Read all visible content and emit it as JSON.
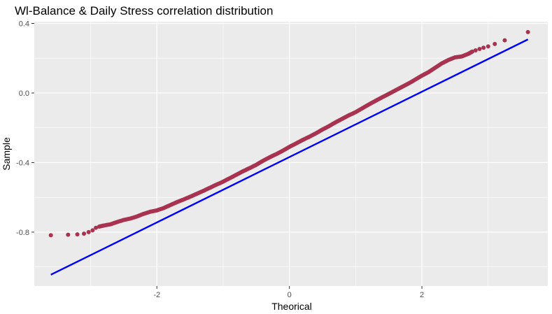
{
  "chart_data": {
    "type": "scatter",
    "title": "Wl-Balance & Daily Stress correlation distribution",
    "xlabel": "Theorical",
    "ylabel": "Sample",
    "xlim": [
      -3.85,
      3.9
    ],
    "ylim": [
      -1.11,
      0.41
    ],
    "x_ticks": [
      -2,
      0,
      2
    ],
    "x_tick_labels": [
      "-2",
      "0",
      "2"
    ],
    "y_ticks": [
      -0.8,
      -0.4,
      0.0,
      0.4
    ],
    "y_tick_labels": [
      "-0.8",
      "-0.4",
      "0.0",
      "0.4"
    ],
    "grid": true,
    "legend": "none",
    "colors": {
      "panel_background": "#EBEBEB",
      "grid_line": "#FFFFFF",
      "points": "#A8324F",
      "reference_line": "#0000FF"
    },
    "series": [
      {
        "kind": "points",
        "x": [
          -3.6,
          -3.34,
          -3.2,
          -3.1,
          -3.03,
          -2.97,
          -2.92,
          -2.87,
          -2.8,
          -2.7,
          -2.6,
          -2.5,
          -2.4,
          -2.3,
          -2.2,
          -2.1,
          -2.0,
          -1.9,
          -1.8,
          -1.7,
          -1.6,
          -1.5,
          -1.4,
          -1.3,
          -1.2,
          -1.1,
          -1.0,
          -0.9,
          -0.8,
          -0.7,
          -0.6,
          -0.5,
          -0.4,
          -0.3,
          -0.2,
          -0.1,
          0.0,
          0.1,
          0.2,
          0.3,
          0.4,
          0.5,
          0.6,
          0.7,
          0.8,
          0.9,
          1.0,
          1.1,
          1.2,
          1.3,
          1.4,
          1.5,
          1.6,
          1.7,
          1.8,
          1.9,
          2.0,
          2.1,
          2.2,
          2.3,
          2.4,
          2.5,
          2.6,
          2.7,
          2.76,
          2.81,
          2.87,
          2.93,
          3.0,
          3.1,
          3.25,
          3.6
        ],
        "y": [
          -0.818,
          -0.815,
          -0.813,
          -0.809,
          -0.8,
          -0.79,
          -0.775,
          -0.768,
          -0.762,
          -0.755,
          -0.742,
          -0.73,
          -0.722,
          -0.71,
          -0.695,
          -0.683,
          -0.675,
          -0.662,
          -0.645,
          -0.628,
          -0.613,
          -0.597,
          -0.58,
          -0.563,
          -0.545,
          -0.527,
          -0.51,
          -0.49,
          -0.47,
          -0.45,
          -0.432,
          -0.413,
          -0.39,
          -0.37,
          -0.352,
          -0.332,
          -0.31,
          -0.29,
          -0.27,
          -0.252,
          -0.232,
          -0.21,
          -0.19,
          -0.168,
          -0.148,
          -0.128,
          -0.11,
          -0.088,
          -0.066,
          -0.045,
          -0.025,
          -0.005,
          0.015,
          0.035,
          0.055,
          0.077,
          0.1,
          0.12,
          0.145,
          0.17,
          0.19,
          0.205,
          0.21,
          0.225,
          0.238,
          0.245,
          0.253,
          0.26,
          0.268,
          0.282,
          0.303,
          0.35
        ]
      },
      {
        "kind": "line",
        "x": [
          -3.6,
          3.6
        ],
        "y": [
          -1.045,
          0.308
        ]
      }
    ]
  }
}
